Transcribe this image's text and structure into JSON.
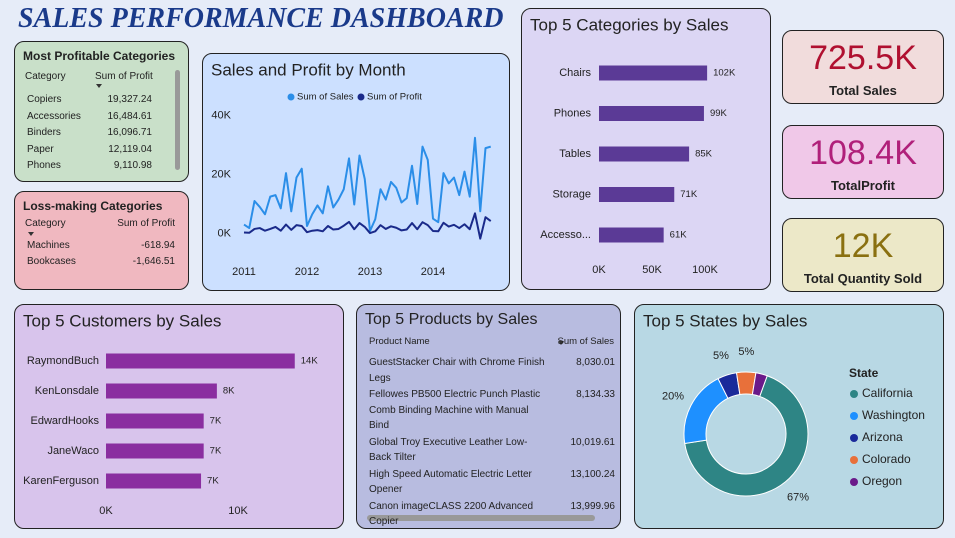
{
  "title": "SALES PERFORMANCE DASHBOARD",
  "profitable": {
    "title": "Most Profitable Categories",
    "columns": [
      "Category",
      "Sum of Profit"
    ],
    "rows": [
      [
        "Copiers",
        "19,327.24"
      ],
      [
        "Accessories",
        "16,484.61"
      ],
      [
        "Binders",
        "16,096.71"
      ],
      [
        "Paper",
        "12,119.04"
      ],
      [
        "Phones",
        "9,110.98"
      ]
    ]
  },
  "loss": {
    "title": "Loss-making Categories",
    "columns": [
      "Category",
      "Sum of Profit"
    ],
    "rows": [
      [
        "Machines",
        "-618.94"
      ],
      [
        "Bookcases",
        "-1,646.51"
      ]
    ]
  },
  "products": {
    "title": "Top 5 Products by Sales",
    "columns": [
      "Product Name",
      "Sum of Sales"
    ],
    "rows": [
      [
        "GuestStacker Chair with Chrome Finish Legs",
        "8,030.01"
      ],
      [
        "Fellowes PB500 Electric Punch Plastic Comb Binding Machine with Manual Bind",
        "8,134.33"
      ],
      [
        "Global Troy Executive Leather Low-Back Tilter",
        "10,019.61"
      ],
      [
        "High Speed Automatic Electric Letter Opener",
        "13,100.24"
      ],
      [
        "Canon imageCLASS 2200 Advanced Copier",
        "13,999.96"
      ]
    ]
  },
  "kpis": [
    {
      "value": "725.5K",
      "label": "Total Sales",
      "color": "#b01030"
    },
    {
      "value": "108.4K",
      "label": "TotalProfit",
      "color": "#b0207a"
    },
    {
      "value": "12K",
      "label": "Total Quantity Sold",
      "color": "#8a7010"
    }
  ],
  "chart_data": [
    {
      "type": "line",
      "title": "Sales and Profit by Month",
      "legend": "top",
      "categories": [
        "2011",
        null,
        null,
        null,
        null,
        null,
        null,
        null,
        null,
        null,
        null,
        null,
        "2012",
        null,
        null,
        null,
        null,
        null,
        null,
        null,
        null,
        null,
        null,
        null,
        "2013",
        null,
        null,
        null,
        null,
        null,
        null,
        null,
        null,
        null,
        null,
        null,
        "2014",
        null,
        null,
        null,
        null,
        null,
        null,
        null,
        null,
        null,
        null,
        null
      ],
      "series": [
        {
          "name": "Sum of Sales",
          "color": "#2b8ee8",
          "values": [
            3000,
            1800,
            11000,
            9000,
            6500,
            12500,
            13000,
            8500,
            20500,
            7500,
            19000,
            22000,
            2500,
            6500,
            9500,
            6800,
            16000,
            8800,
            11500,
            15000,
            25500,
            9800,
            26500,
            18500,
            800,
            4800,
            15000,
            11500,
            17500,
            15500,
            10500,
            12000,
            23000,
            10000,
            29500,
            25000,
            5000,
            3800,
            20500,
            17000,
            19000,
            13000,
            21000,
            12500,
            32500,
            7500,
            29000,
            29500
          ]
        },
        {
          "name": "Sum of Profit",
          "color": "#1a2a8a",
          "values": [
            300,
            200,
            1500,
            1800,
            900,
            1500,
            2200,
            900,
            3000,
            1200,
            2800,
            2500,
            400,
            900,
            1100,
            700,
            2500,
            1300,
            1500,
            2600,
            3900,
            1400,
            3500,
            2200,
            100,
            700,
            2800,
            1500,
            2400,
            1900,
            1000,
            1300,
            3500,
            1400,
            3800,
            2800,
            800,
            700,
            3600,
            2300,
            2900,
            1800,
            3100,
            1400,
            6800,
            -1800,
            5500,
            4200
          ]
        }
      ],
      "ylim": [
        -6000,
        44000
      ],
      "yticks": [
        {
          "value": 0,
          "label": "0K"
        },
        {
          "value": 20000,
          "label": "20K"
        },
        {
          "value": 40000,
          "label": "40K"
        }
      ]
    },
    {
      "type": "barh",
      "title": "Top 5 Categories by Sales",
      "categories": [
        "Chairs",
        "Phones",
        "Tables",
        "Storage",
        "Accesso..."
      ],
      "values": [
        102000,
        99000,
        85000,
        71000,
        61000
      ],
      "value_labels": [
        "102K",
        "99K",
        "85K",
        "71K",
        "61K"
      ],
      "color": "#5b3a96",
      "xlim": [
        0,
        110000
      ],
      "xticks": [
        {
          "value": 0,
          "label": "0K"
        },
        {
          "value": 50000,
          "label": "50K"
        },
        {
          "value": 100000,
          "label": "100K"
        }
      ]
    },
    {
      "type": "barh",
      "title": "Top 5 Customers by Sales",
      "categories": [
        "RaymondBuch",
        "KenLonsdale",
        "EdwardHooks",
        "JaneWaco",
        "KarenFerguson"
      ],
      "values": [
        14300,
        8400,
        7400,
        7400,
        7200
      ],
      "value_labels": [
        "14K",
        "8K",
        "7K",
        "7K",
        "7K"
      ],
      "color": "#8a2ea0",
      "xlim": [
        0,
        15000
      ],
      "xticks": [
        {
          "value": 0,
          "label": "0K"
        },
        {
          "value": 10000,
          "label": "10K"
        }
      ]
    },
    {
      "type": "donut",
      "title": "Top 5 States by Sales",
      "legend_title": "State",
      "categories": [
        "California",
        "Washington",
        "Arizona",
        "Colorado",
        "Oregon"
      ],
      "values": [
        67,
        20,
        5,
        5,
        3
      ],
      "value_labels": [
        "67%",
        "20%",
        "5%",
        "5%",
        null
      ],
      "colors": [
        "#2e8585",
        "#1e90ff",
        "#1a2a9a",
        "#e8703a",
        "#6a1a8a"
      ]
    }
  ]
}
